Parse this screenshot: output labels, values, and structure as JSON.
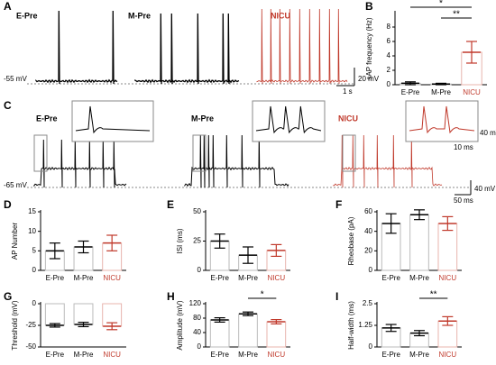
{
  "figure": {
    "A": {
      "letter": "A",
      "labels": [
        "E-Pre",
        "M-Pre",
        "NICU"
      ],
      "baseline": "-55 mV",
      "scale_v": "20 mV",
      "scale_t": "1 s"
    },
    "C": {
      "letter": "C",
      "labels": [
        "E-Pre",
        "M-Pre",
        "NICU"
      ],
      "baseline": "-65 mV",
      "inset_v": "40 mV",
      "inset_t": "10 ms",
      "scale_v": "40 mV",
      "scale_t": "50 ms"
    }
  },
  "chart_data": [
    {
      "type": "bar",
      "panel": "B",
      "ylabel": "sAP frequency (Hz)",
      "categories": [
        "E-Pre",
        "M-Pre",
        "NICU"
      ],
      "values": [
        0.2,
        0.1,
        4.5
      ],
      "errors": [
        0.2,
        0.1,
        1.5
      ],
      "colors": [
        "#000000",
        "#000000",
        "#c0392b"
      ],
      "ylim": [
        0,
        10
      ],
      "yticks": [
        0,
        2,
        4,
        6,
        8
      ],
      "annotations": [
        "*",
        "**"
      ]
    },
    {
      "type": "bar",
      "panel": "D",
      "ylabel": "AP Number",
      "categories": [
        "E-Pre",
        "M-Pre",
        "NICU"
      ],
      "values": [
        5,
        6,
        7
      ],
      "errors": [
        2,
        1.5,
        2
      ],
      "colors": [
        "#000000",
        "#000000",
        "#c0392b"
      ],
      "ylim": [
        0,
        15
      ],
      "yticks": [
        0,
        5,
        10,
        15
      ],
      "annotations": []
    },
    {
      "type": "bar",
      "panel": "E",
      "ylabel": "ISI (ms)",
      "categories": [
        "E-Pre",
        "M-Pre",
        "NICU"
      ],
      "values": [
        25,
        13,
        17
      ],
      "errors": [
        6,
        7,
        5
      ],
      "colors": [
        "#000000",
        "#000000",
        "#c0392b"
      ],
      "ylim": [
        0,
        50
      ],
      "yticks": [
        0,
        25,
        50
      ],
      "annotations": []
    },
    {
      "type": "bar",
      "panel": "F",
      "ylabel": "Rheobase (pA)",
      "categories": [
        "E-Pre",
        "M-Pre",
        "NICU"
      ],
      "values": [
        48,
        57,
        48
      ],
      "errors": [
        10,
        5,
        7
      ],
      "colors": [
        "#000000",
        "#000000",
        "#c0392b"
      ],
      "ylim": [
        0,
        60
      ],
      "yticks": [
        0,
        20,
        40,
        60
      ],
      "annotations": []
    },
    {
      "type": "bar",
      "panel": "G",
      "ylabel": "Threshold (mV)",
      "categories": [
        "E-Pre",
        "M-Pre",
        "NICU"
      ],
      "values": [
        -25,
        -24,
        -26
      ],
      "errors": [
        2,
        2.5,
        4
      ],
      "colors": [
        "#000000",
        "#000000",
        "#c0392b"
      ],
      "ylim": [
        -50,
        0
      ],
      "yticks": [
        -50,
        -25,
        0
      ],
      "annotations": []
    },
    {
      "type": "bar",
      "panel": "H",
      "ylabel": "Amplitude (mV)",
      "categories": [
        "E-Pre",
        "M-Pre",
        "NICU"
      ],
      "values": [
        75,
        92,
        70
      ],
      "errors": [
        6,
        5,
        6
      ],
      "colors": [
        "#000000",
        "#000000",
        "#c0392b"
      ],
      "ylim": [
        0,
        120
      ],
      "yticks": [
        0,
        40,
        80,
        120
      ],
      "annotations": [
        "*"
      ]
    },
    {
      "type": "bar",
      "panel": "I",
      "ylabel": "Half-width (ms)",
      "categories": [
        "E-Pre",
        "M-Pre",
        "NICU"
      ],
      "values": [
        1.1,
        0.8,
        1.5
      ],
      "errors": [
        0.2,
        0.15,
        0.25
      ],
      "colors": [
        "#000000",
        "#000000",
        "#c0392b"
      ],
      "ylim": [
        0,
        2.5
      ],
      "yticks": [
        0,
        1.25,
        2.5
      ],
      "annotations": [
        "**"
      ]
    }
  ]
}
